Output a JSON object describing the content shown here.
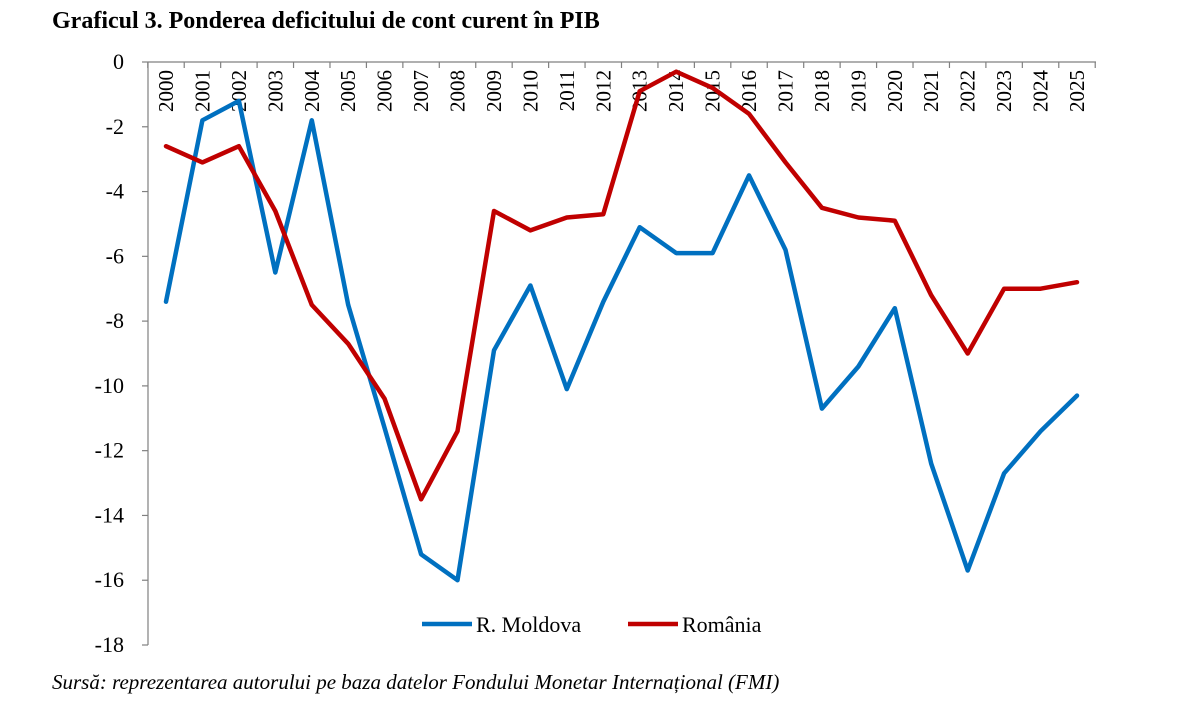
{
  "title": "Graficul 3. Ponderea deficitului de cont curent în PIB",
  "source": "Sursă: reprezentarea autorului pe baza datelor Fondului Monetar Internațional (FMI)",
  "chart_data": {
    "type": "line",
    "title": "Graficul 3. Ponderea deficitului de cont curent în PIB",
    "xlabel": "",
    "ylabel": "",
    "x": [
      "2000",
      "2001",
      "2002",
      "2003",
      "2004",
      "2005",
      "2006",
      "2007",
      "2008",
      "2009",
      "2010",
      "2011",
      "2012",
      "2013",
      "2014",
      "2015",
      "2016",
      "2017",
      "2018",
      "2019",
      "2020",
      "2021",
      "2022",
      "2023",
      "2024",
      "2025"
    ],
    "ylim": [
      -18,
      0
    ],
    "yticks": [
      0,
      -2,
      -4,
      -6,
      -8,
      -10,
      -12,
      -14,
      -16,
      -18
    ],
    "grid": false,
    "legend_position": "bottom-center",
    "series": [
      {
        "name": "R. Moldova",
        "color": "#0070C0",
        "values": [
          -7.4,
          -1.8,
          -1.2,
          -6.5,
          -1.8,
          -7.5,
          -11.3,
          -15.2,
          -16.0,
          -8.9,
          -6.9,
          -10.1,
          -7.4,
          -5.1,
          -5.9,
          -5.9,
          -3.5,
          -5.8,
          -10.7,
          -9.4,
          -7.6,
          -12.4,
          -15.7,
          -12.7,
          -11.4,
          -10.3
        ]
      },
      {
        "name": "România",
        "color": "#C00000",
        "values": [
          -2.6,
          -3.1,
          -2.6,
          -4.6,
          -7.5,
          -8.7,
          -10.4,
          -13.5,
          -11.4,
          -4.6,
          -5.2,
          -4.8,
          -4.7,
          -0.9,
          -0.3,
          -0.8,
          -1.6,
          -3.1,
          -4.5,
          -4.8,
          -4.9,
          -7.2,
          -9.0,
          -7.0,
          -7.0,
          -6.8
        ]
      }
    ]
  }
}
